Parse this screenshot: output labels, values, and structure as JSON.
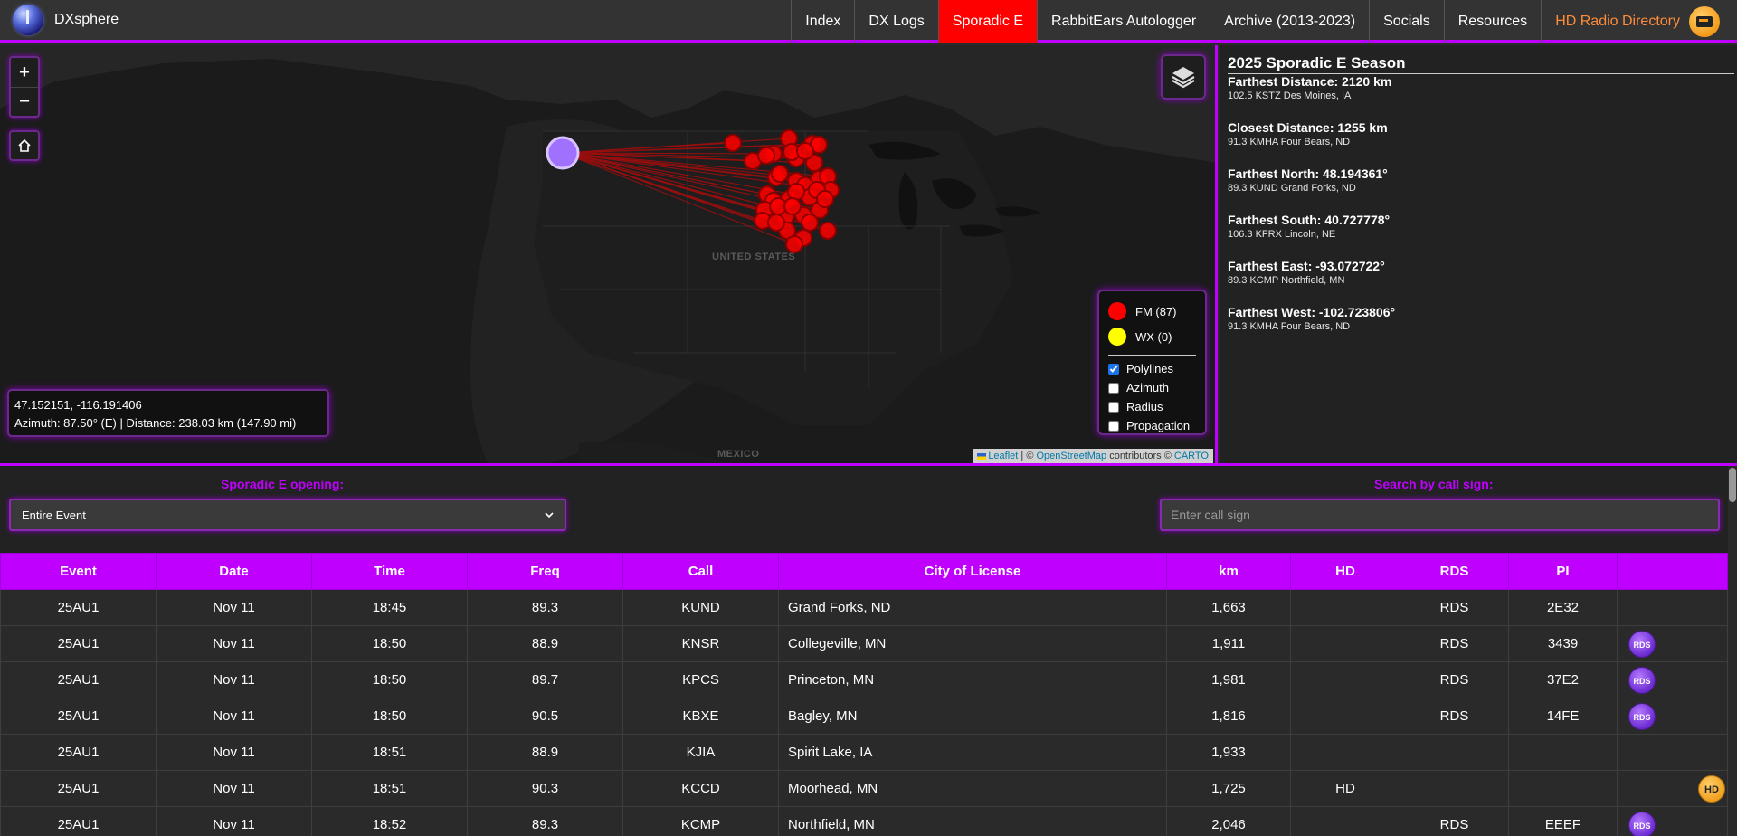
{
  "nav": {
    "brand": "DXsphere",
    "links": [
      "Index",
      "DX Logs",
      "Sporadic E",
      "RabbitEars Autologger",
      "Archive (2013-2023)",
      "Socials",
      "Resources",
      "HD Radio Directory"
    ],
    "active": "Sporadic E"
  },
  "map": {
    "zoom_in": "+",
    "zoom_out": "−",
    "labels": {
      "us": "UNITED STATES",
      "mexico": "MEXICO"
    },
    "coord_line1": "47.152151, -116.191406",
    "coord_line2": "Azimuth: 87.50° (E) | Distance: 238.03 km (147.90 mi)",
    "legend": {
      "fm": "FM (87)",
      "wx": "WX (0)",
      "fm_color": "#ff0000",
      "wx_color": "#ffff00",
      "options": [
        {
          "label": "Polylines",
          "checked": true
        },
        {
          "label": "Azimuth",
          "checked": false
        },
        {
          "label": "Radius",
          "checked": false
        },
        {
          "label": "Propagation",
          "checked": false
        }
      ]
    },
    "attribution": {
      "leaflet": "Leaflet",
      "sep": " | © ",
      "osm": "OpenStreetMap",
      "contrib": " contributors © ",
      "carto": "CARTO"
    }
  },
  "stats": {
    "title": "2025 Sporadic E Season",
    "items": [
      {
        "head": "Farthest Distance: 2120 km",
        "sub": "102.5 KSTZ Des Moines, IA"
      },
      {
        "head": "Closest Distance: 1255 km",
        "sub": "91.3 KMHA Four Bears, ND"
      },
      {
        "head": "Farthest North: 48.194361°",
        "sub": "89.3 KUND Grand Forks, ND"
      },
      {
        "head": "Farthest South: 40.727778°",
        "sub": "106.3 KFRX Lincoln, NE"
      },
      {
        "head": "Farthest East: -93.072722°",
        "sub": "89.3 KCMP Northfield, MN"
      },
      {
        "head": "Farthest West: -102.723806°",
        "sub": "91.3 KMHA Four Bears, ND"
      }
    ]
  },
  "filters": {
    "opening_label": "Sporadic E opening:",
    "opening_value": "Entire Event",
    "search_label": "Search by call sign:",
    "search_placeholder": "Enter call sign"
  },
  "table": {
    "headers": [
      "Event",
      "Date",
      "Time",
      "Freq",
      "Call",
      "City of License",
      "km",
      "HD",
      "RDS",
      "PI",
      ""
    ],
    "rows": [
      {
        "event": "25AU1",
        "date": "Nov 11",
        "time": "18:45",
        "freq": "89.3",
        "call": "KUND",
        "city": "Grand Forks, ND",
        "km": "1,663",
        "hd": "",
        "rds": "RDS",
        "pi": "2E32",
        "badge": ""
      },
      {
        "event": "25AU1",
        "date": "Nov 11",
        "time": "18:50",
        "freq": "88.9",
        "call": "KNSR",
        "city": "Collegeville, MN",
        "km": "1,911",
        "hd": "",
        "rds": "RDS",
        "pi": "3439",
        "badge": "RDS"
      },
      {
        "event": "25AU1",
        "date": "Nov 11",
        "time": "18:50",
        "freq": "89.7",
        "call": "KPCS",
        "city": "Princeton, MN",
        "km": "1,981",
        "hd": "",
        "rds": "RDS",
        "pi": "37E2",
        "badge": "RDS"
      },
      {
        "event": "25AU1",
        "date": "Nov 11",
        "time": "18:50",
        "freq": "90.5",
        "call": "KBXE",
        "city": "Bagley, MN",
        "km": "1,816",
        "hd": "",
        "rds": "RDS",
        "pi": "14FE",
        "badge": "RDS"
      },
      {
        "event": "25AU1",
        "date": "Nov 11",
        "time": "18:51",
        "freq": "88.9",
        "call": "KJIA",
        "city": "Spirit Lake, IA",
        "km": "1,933",
        "hd": "",
        "rds": "",
        "pi": "",
        "badge": ""
      },
      {
        "event": "25AU1",
        "date": "Nov 11",
        "time": "18:51",
        "freq": "90.3",
        "call": "KCCD",
        "city": "Moorhead, MN",
        "km": "1,725",
        "hd": "HD",
        "rds": "",
        "pi": "",
        "badge": "HD"
      },
      {
        "event": "25AU1",
        "date": "Nov 11",
        "time": "18:52",
        "freq": "89.3",
        "call": "KCMP",
        "city": "Northfield, MN",
        "km": "2,046",
        "hd": "",
        "rds": "RDS",
        "pi": "EEEF",
        "badge": "RDS"
      }
    ]
  }
}
